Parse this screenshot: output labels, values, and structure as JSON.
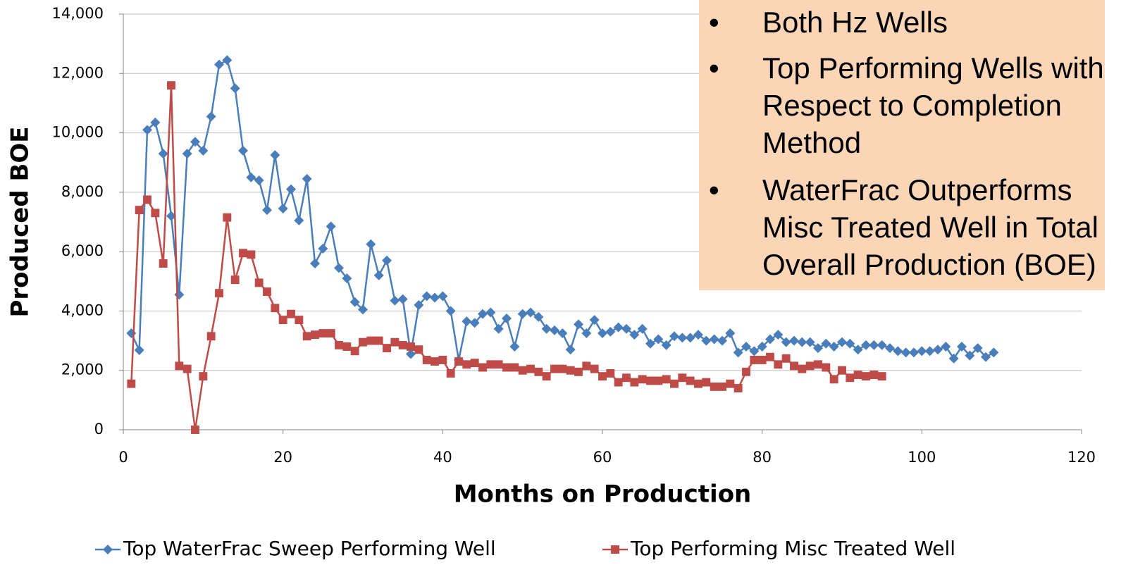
{
  "chart_data": {
    "type": "line",
    "xlabel": "Months on Production",
    "ylabel": "Produced BOE",
    "xlim": [
      0,
      120
    ],
    "xticks": [
      0,
      20,
      40,
      60,
      80,
      100,
      120
    ],
    "ylim": [
      0,
      14000
    ],
    "yticks": [
      0,
      {
        "value": 2000,
        "label": "2,000"
      },
      {
        "value": 4000,
        "label": "4,000"
      },
      {
        "value": 6000,
        "label": "6,000"
      },
      {
        "value": 8000,
        "label": "8,000"
      },
      {
        "value": 10000,
        "label": "10,000"
      },
      {
        "value": 12000,
        "label": "12,000"
      },
      {
        "value": 14000,
        "label": "14,000"
      }
    ],
    "grid": true,
    "legend": "bottom",
    "series": [
      {
        "name": "Top WaterFrac Sweep Performing Well",
        "color": "#4a7ebb",
        "marker": "diamond",
        "x": [
          1,
          2,
          3,
          4,
          5,
          6,
          7,
          8,
          9,
          10,
          11,
          12,
          13,
          14,
          15,
          16,
          17,
          18,
          19,
          20,
          21,
          22,
          23,
          24,
          25,
          26,
          27,
          28,
          29,
          30,
          31,
          32,
          33,
          34,
          35,
          36,
          37,
          38,
          39,
          40,
          41,
          42,
          43,
          44,
          45,
          46,
          47,
          48,
          49,
          50,
          51,
          52,
          53,
          54,
          55,
          56,
          57,
          58,
          59,
          60,
          61,
          62,
          63,
          64,
          65,
          66,
          67,
          68,
          69,
          70,
          71,
          72,
          73,
          74,
          75,
          76,
          77,
          78,
          79,
          80,
          81,
          82,
          83,
          84,
          85,
          86,
          87,
          88,
          89,
          90,
          91,
          92,
          93,
          94,
          95,
          96,
          97,
          98,
          99,
          100,
          101,
          102,
          103,
          104,
          105,
          106,
          107,
          108,
          109
        ],
        "values": [
          3250,
          2680,
          10100,
          10350,
          9300,
          7200,
          4550,
          9300,
          9700,
          9400,
          10550,
          12300,
          12450,
          11500,
          9400,
          8500,
          8400,
          7400,
          9250,
          7450,
          8100,
          7050,
          8450,
          5600,
          6100,
          6850,
          5450,
          5100,
          4300,
          4050,
          6250,
          5200,
          5700,
          4350,
          4400,
          2550,
          4200,
          4500,
          4450,
          4500,
          4000,
          2350,
          3650,
          3600,
          3900,
          3950,
          3400,
          3750,
          2800,
          3900,
          3950,
          3800,
          3400,
          3350,
          3250,
          2700,
          3550,
          3250,
          3700,
          3250,
          3300,
          3450,
          3400,
          3200,
          3400,
          2900,
          3050,
          2850,
          3150,
          3100,
          3100,
          3200,
          3000,
          3050,
          3000,
          3250,
          2600,
          2800,
          2650,
          2800,
          3050,
          3200,
          2950,
          3000,
          2950,
          2950,
          2750,
          2900,
          2800,
          2950,
          2900,
          2700,
          2850,
          2850,
          2850,
          2750,
          2650,
          2600,
          2600,
          2650,
          2650,
          2700,
          2800,
          2400,
          2800,
          2500,
          2750,
          2450,
          2600
        ]
      },
      {
        "name": "Top Performing Misc Treated Well",
        "color": "#be4b48",
        "marker": "square",
        "x": [
          1,
          2,
          3,
          4,
          5,
          6,
          7,
          8,
          9,
          10,
          11,
          12,
          13,
          14,
          15,
          16,
          17,
          18,
          19,
          20,
          21,
          22,
          23,
          24,
          25,
          26,
          27,
          28,
          29,
          30,
          31,
          32,
          33,
          34,
          35,
          36,
          37,
          38,
          39,
          40,
          41,
          42,
          43,
          44,
          45,
          46,
          47,
          48,
          49,
          50,
          51,
          52,
          53,
          54,
          55,
          56,
          57,
          58,
          59,
          60,
          61,
          62,
          63,
          64,
          65,
          66,
          67,
          68,
          69,
          70,
          71,
          72,
          73,
          74,
          75,
          76,
          77,
          78,
          79,
          80,
          81,
          82,
          83,
          84,
          85,
          86,
          87,
          88,
          89,
          90,
          91,
          92,
          93,
          94,
          95
        ],
        "values": [
          1550,
          7400,
          7750,
          7300,
          5600,
          11600,
          2150,
          2050,
          0,
          1800,
          3150,
          4600,
          7150,
          5050,
          5950,
          5900,
          4950,
          4650,
          4100,
          3700,
          3900,
          3700,
          3150,
          3200,
          3250,
          3250,
          2850,
          2800,
          2650,
          2950,
          3000,
          3000,
          2750,
          2950,
          2850,
          2800,
          2700,
          2350,
          2300,
          2350,
          1900,
          2300,
          2200,
          2250,
          2100,
          2200,
          2200,
          2100,
          2100,
          2000,
          2050,
          1950,
          1800,
          2050,
          2050,
          2000,
          1950,
          2150,
          2050,
          1800,
          1900,
          1600,
          1750,
          1600,
          1700,
          1650,
          1650,
          1700,
          1550,
          1750,
          1650,
          1550,
          1600,
          1450,
          1450,
          1550,
          1400,
          1950,
          2350,
          2350,
          2450,
          2200,
          2400,
          2150,
          2050,
          2150,
          2200,
          2100,
          1700,
          2000,
          1750,
          1850,
          1800,
          1850,
          1800
        ]
      }
    ],
    "annotation": {
      "bullets": [
        [
          "Both Hz Wells"
        ],
        [
          "Top Performing Wells with",
          "Respect to Completion",
          "Method"
        ],
        [
          "WaterFrac Outperforms",
          "Misc Treated Well in Total",
          "Overall Production (BOE)"
        ]
      ]
    }
  }
}
